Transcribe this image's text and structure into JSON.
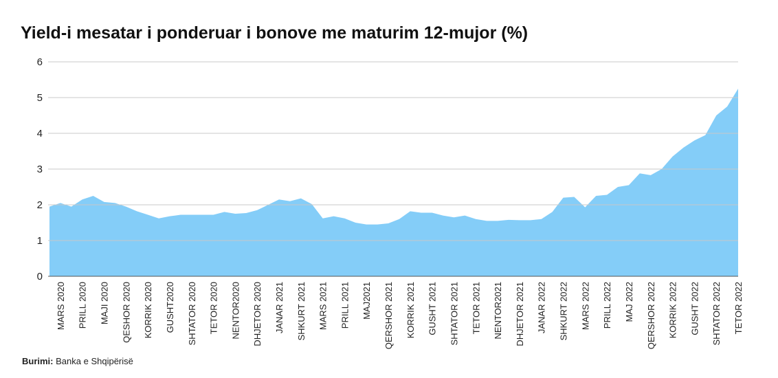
{
  "chart_data": {
    "type": "area",
    "title": "Yield-i mesatar i ponderuar i bonove me maturim 12-mujor (%)",
    "source_label": "Burimi:",
    "source_text": "Banka e Shqipërisë",
    "categories": [
      null,
      "MARS 2020",
      null,
      "PRILL 2020",
      null,
      "MAJI 2020",
      null,
      "QESHOR 2020",
      null,
      "KORRIK 2020",
      null,
      "GUSHT2020",
      null,
      "SHTATOR 2020",
      null,
      "TETOR 2020",
      null,
      "NENTOR2020",
      null,
      "DHJETOR 2020",
      null,
      "JANAR 2021",
      null,
      "SHKURT 2021",
      null,
      "MARS 2021",
      null,
      "PRILL 2021",
      null,
      "MAJ2021",
      null,
      "QERSHOR 2021",
      null,
      "KORRIK 2021",
      null,
      "GUSHT 2021",
      null,
      "SHTATOR 2021",
      null,
      "TETOR 2021",
      null,
      "NENTOR2021",
      null,
      "DHJETOR 2021",
      null,
      "JANAR 2022",
      null,
      "SHKURT 2022",
      null,
      "MARS 2022",
      null,
      "PRILL 2022",
      null,
      "MAJ 2022",
      null,
      "QERSHOR 2022",
      null,
      "KORRIK 2022",
      null,
      "GUSHT 2022",
      null,
      "SHTATOR 2022",
      null,
      "TETOR 2022"
    ],
    "values": [
      1.95,
      2.05,
      1.95,
      2.15,
      2.25,
      2.08,
      2.05,
      1.95,
      1.82,
      1.72,
      1.62,
      1.68,
      1.72,
      1.72,
      1.72,
      1.72,
      1.8,
      1.75,
      1.77,
      1.85,
      2.0,
      2.15,
      2.1,
      2.18,
      2.02,
      1.62,
      1.68,
      1.62,
      1.5,
      1.45,
      1.45,
      1.48,
      1.6,
      1.82,
      1.78,
      1.78,
      1.7,
      1.65,
      1.7,
      1.6,
      1.55,
      1.55,
      1.58,
      1.57,
      1.57,
      1.6,
      1.8,
      2.2,
      2.22,
      1.93,
      2.25,
      2.28,
      2.5,
      2.55,
      2.88,
      2.83,
      3.0,
      3.35,
      3.6,
      3.8,
      3.95,
      4.5,
      4.75,
      5.25
    ],
    "color": "#84cdf8",
    "ylim": [
      0,
      6
    ],
    "yticks": [
      0,
      1,
      2,
      3,
      4,
      5,
      6
    ],
    "grid": true
  }
}
